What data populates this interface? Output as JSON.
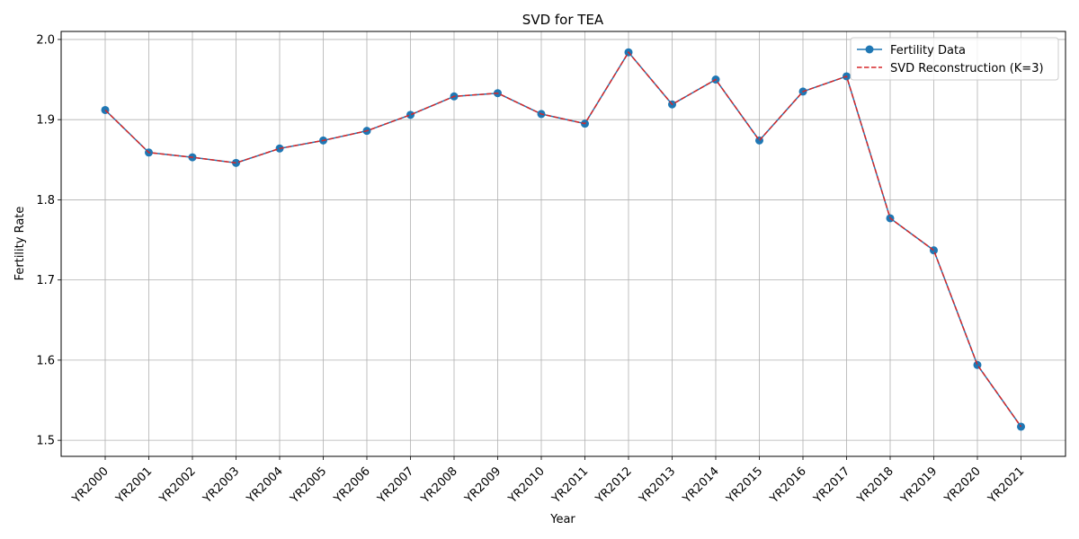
{
  "chart_data": {
    "type": "line",
    "title": "SVD for TEA",
    "xlabel": "Year",
    "ylabel": "Fertility Rate",
    "categories": [
      "YR2000",
      "YR2001",
      "YR2002",
      "YR2003",
      "YR2004",
      "YR2005",
      "YR2006",
      "YR2007",
      "YR2008",
      "YR2009",
      "YR2010",
      "YR2011",
      "YR2012",
      "YR2013",
      "YR2014",
      "YR2015",
      "YR2016",
      "YR2017",
      "YR2018",
      "YR2019",
      "YR2020",
      "YR2021"
    ],
    "ylim": [
      1.48,
      2.01
    ],
    "yticks": [
      "1.5",
      "1.6",
      "1.7",
      "1.8",
      "1.9",
      "2.0"
    ],
    "grid": true,
    "legend_position": "top-right",
    "series": [
      {
        "name": "Fertility Data",
        "style": "solid line with circle markers",
        "color": "#1f77b4",
        "values": [
          1.912,
          1.859,
          1.853,
          1.846,
          1.864,
          1.874,
          1.886,
          1.906,
          1.929,
          1.933,
          1.907,
          1.895,
          1.984,
          1.919,
          1.95,
          1.874,
          1.935,
          1.954,
          1.777,
          1.737,
          1.594,
          1.517
        ]
      },
      {
        "name": "SVD Reconstruction (K=3)",
        "style": "dashed line",
        "color": "#d62728",
        "values": [
          1.912,
          1.859,
          1.853,
          1.846,
          1.864,
          1.874,
          1.886,
          1.906,
          1.929,
          1.933,
          1.907,
          1.895,
          1.984,
          1.919,
          1.95,
          1.874,
          1.935,
          1.954,
          1.777,
          1.737,
          1.594,
          1.517
        ]
      }
    ]
  }
}
